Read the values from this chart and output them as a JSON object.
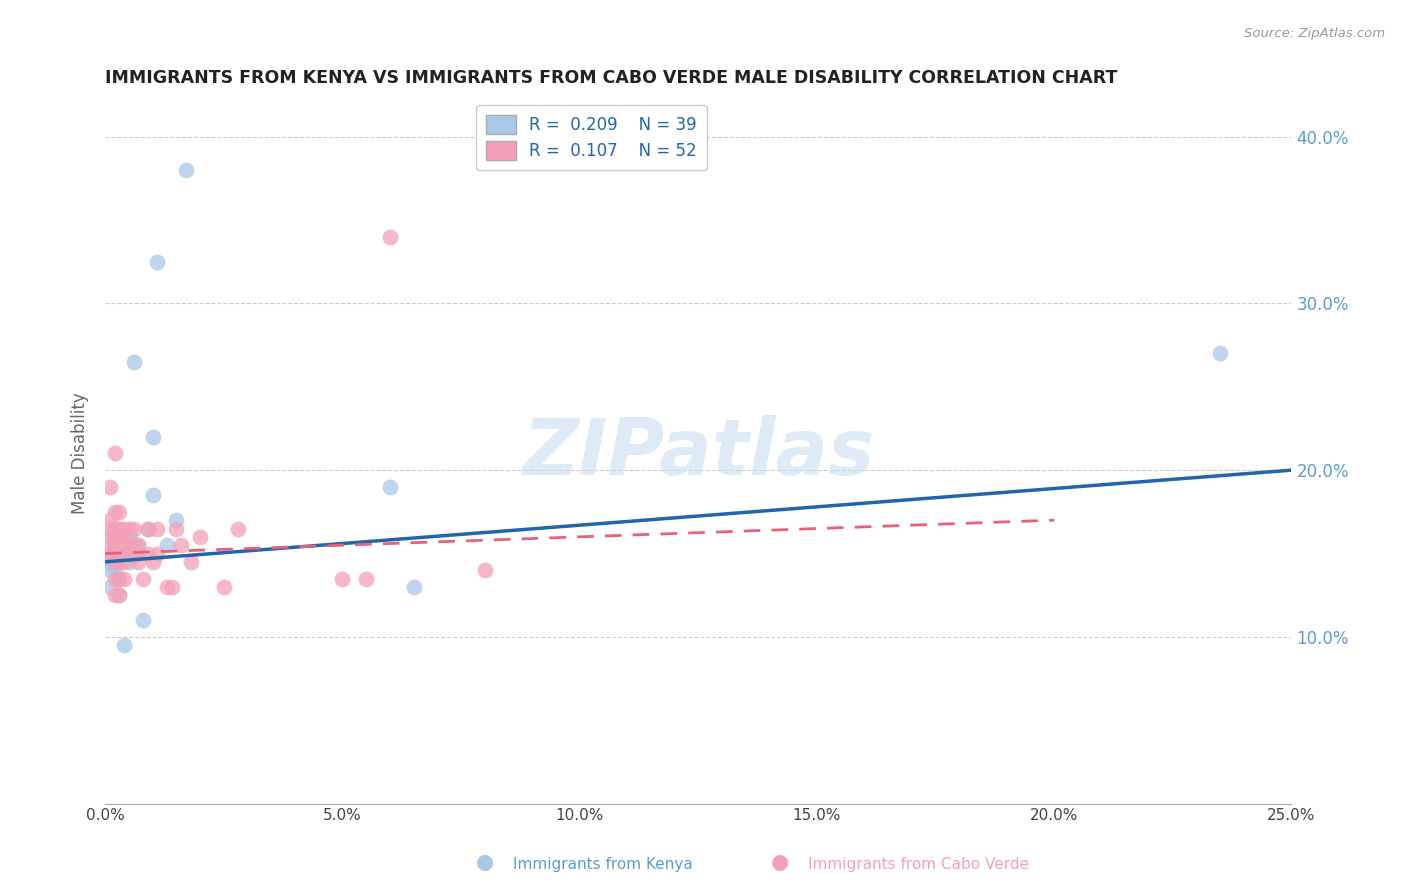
{
  "title": "IMMIGRANTS FROM KENYA VS IMMIGRANTS FROM CABO VERDE MALE DISABILITY CORRELATION CHART",
  "source": "Source: ZipAtlas.com",
  "xlabel_kenya": "Immigrants from Kenya",
  "xlabel_caboverde": "Immigrants from Cabo Verde",
  "ylabel": "Male Disability",
  "xlim": [
    0.0,
    0.25
  ],
  "ylim": [
    0.0,
    0.42
  ],
  "xticks": [
    0.0,
    0.05,
    0.1,
    0.15,
    0.2,
    0.25
  ],
  "yticks": [
    0.1,
    0.2,
    0.3,
    0.4
  ],
  "ytick_labels": [
    "10.0%",
    "20.0%",
    "30.0%",
    "40.0%"
  ],
  "xtick_labels": [
    "0.0%",
    "5.0%",
    "10.0%",
    "15.0%",
    "20.0%",
    "25.0%"
  ],
  "kenya_color": "#a8c8e8",
  "caboverde_color": "#f4a0b8",
  "kenya_line_color": "#2166ac",
  "caboverde_line_color": "#e8607a",
  "watermark": "ZIPatlas",
  "background_color": "#ffffff",
  "grid_color": "#cccccc",
  "title_color": "#222222",
  "axis_label_color": "#666666",
  "tick_label_color_right": "#5b9bd5",
  "kenya_scatter_x": [
    0.001,
    0.001,
    0.001,
    0.001,
    0.002,
    0.002,
    0.002,
    0.002,
    0.002,
    0.002,
    0.002,
    0.003,
    0.003,
    0.003,
    0.003,
    0.003,
    0.004,
    0.004,
    0.004,
    0.005,
    0.005,
    0.005,
    0.005,
    0.006,
    0.006,
    0.006,
    0.007,
    0.007,
    0.008,
    0.009,
    0.01,
    0.01,
    0.011,
    0.013,
    0.015,
    0.017,
    0.06,
    0.065,
    0.235
  ],
  "kenya_scatter_y": [
    0.13,
    0.14,
    0.145,
    0.15,
    0.145,
    0.15,
    0.14,
    0.15,
    0.155,
    0.155,
    0.16,
    0.125,
    0.135,
    0.15,
    0.155,
    0.165,
    0.095,
    0.15,
    0.155,
    0.155,
    0.16,
    0.145,
    0.16,
    0.15,
    0.155,
    0.265,
    0.15,
    0.155,
    0.11,
    0.165,
    0.185,
    0.22,
    0.325,
    0.155,
    0.17,
    0.38,
    0.19,
    0.13,
    0.27
  ],
  "caboverde_scatter_x": [
    0.001,
    0.001,
    0.001,
    0.001,
    0.001,
    0.001,
    0.002,
    0.002,
    0.002,
    0.002,
    0.002,
    0.002,
    0.002,
    0.002,
    0.002,
    0.003,
    0.003,
    0.003,
    0.003,
    0.003,
    0.003,
    0.003,
    0.003,
    0.004,
    0.004,
    0.004,
    0.004,
    0.005,
    0.005,
    0.005,
    0.006,
    0.006,
    0.007,
    0.007,
    0.008,
    0.009,
    0.009,
    0.01,
    0.011,
    0.011,
    0.013,
    0.014,
    0.015,
    0.016,
    0.018,
    0.02,
    0.025,
    0.028,
    0.05,
    0.055,
    0.06,
    0.08
  ],
  "caboverde_scatter_y": [
    0.15,
    0.155,
    0.16,
    0.165,
    0.17,
    0.19,
    0.125,
    0.135,
    0.145,
    0.155,
    0.155,
    0.16,
    0.165,
    0.175,
    0.21,
    0.125,
    0.135,
    0.145,
    0.155,
    0.155,
    0.16,
    0.165,
    0.175,
    0.135,
    0.145,
    0.155,
    0.165,
    0.15,
    0.155,
    0.165,
    0.155,
    0.165,
    0.145,
    0.155,
    0.135,
    0.15,
    0.165,
    0.145,
    0.15,
    0.165,
    0.13,
    0.13,
    0.165,
    0.155,
    0.145,
    0.16,
    0.13,
    0.165,
    0.135,
    0.135,
    0.34,
    0.14
  ],
  "kenya_line_x": [
    0.0,
    0.25
  ],
  "kenya_line_y": [
    0.145,
    0.2
  ],
  "caboverde_line_x": [
    0.0,
    0.2
  ],
  "caboverde_line_y": [
    0.15,
    0.17
  ]
}
